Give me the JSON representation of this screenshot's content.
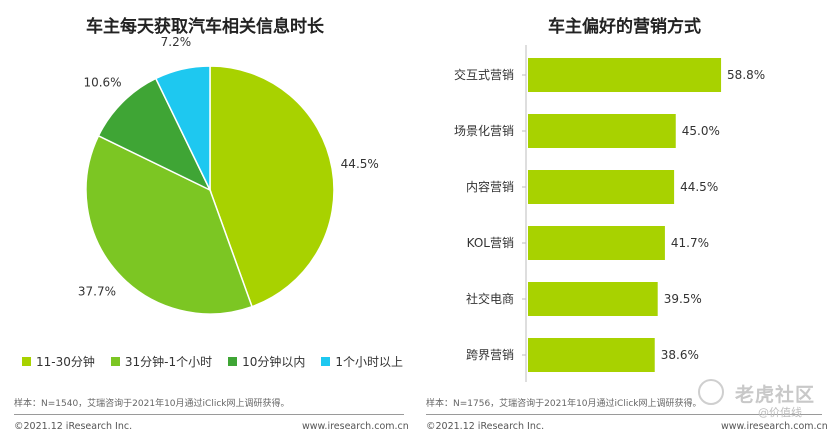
{
  "left": {
    "title": "车主每天获取汽车相关信息时长",
    "note": "样本：N=1540，艾瑞咨询于2021年10月通过iClick网上调研获得。",
    "footer_left": "©2021.12 iResearch Inc.",
    "footer_right": "www.iresearch.com.cn"
  },
  "right": {
    "title": "车主偏好的营销方式",
    "note": "样本：N=1756，艾瑞咨询于2021年10月通过iClick网上调研获得。",
    "footer_left": "©2021.12  iResearch Inc.",
    "footer_right": "www.iresearch.com.cn"
  },
  "watermark": {
    "main": "老虎社区",
    "sub": "@价值线"
  },
  "colors": {
    "lime": "#A8D200",
    "light_green": "#7CC623",
    "green": "#3FA535",
    "cyan": "#1EC8F0"
  },
  "chart_data": [
    {
      "type": "pie",
      "title": "车主每天获取汽车相关信息时长",
      "slices": [
        {
          "name": "11-30分钟",
          "value": 44.5,
          "label": "44.5%",
          "color": "#A8D200"
        },
        {
          "name": "31分钟-1个小时",
          "value": 37.7,
          "label": "37.7%",
          "color": "#7CC623"
        },
        {
          "name": "10分钟以内",
          "value": 10.6,
          "label": "10.6%",
          "color": "#3FA535"
        },
        {
          "name": "1个小时以上",
          "value": 7.2,
          "label": "7.2%",
          "color": "#1EC8F0"
        }
      ],
      "legend_position": "bottom"
    },
    {
      "type": "bar",
      "orientation": "horizontal",
      "title": "车主偏好的营销方式",
      "categories": [
        "交互式营销",
        "场景化营销",
        "内容营销",
        "KOL营销",
        "社交电商",
        "跨界营销"
      ],
      "values": [
        58.8,
        45.0,
        44.5,
        41.7,
        39.5,
        38.6
      ],
      "labels": [
        "58.8%",
        "45.0%",
        "44.5%",
        "41.7%",
        "39.5%",
        "38.6%"
      ],
      "xlim": [
        0,
        60
      ],
      "color": "#A8D200",
      "grid": false
    }
  ]
}
